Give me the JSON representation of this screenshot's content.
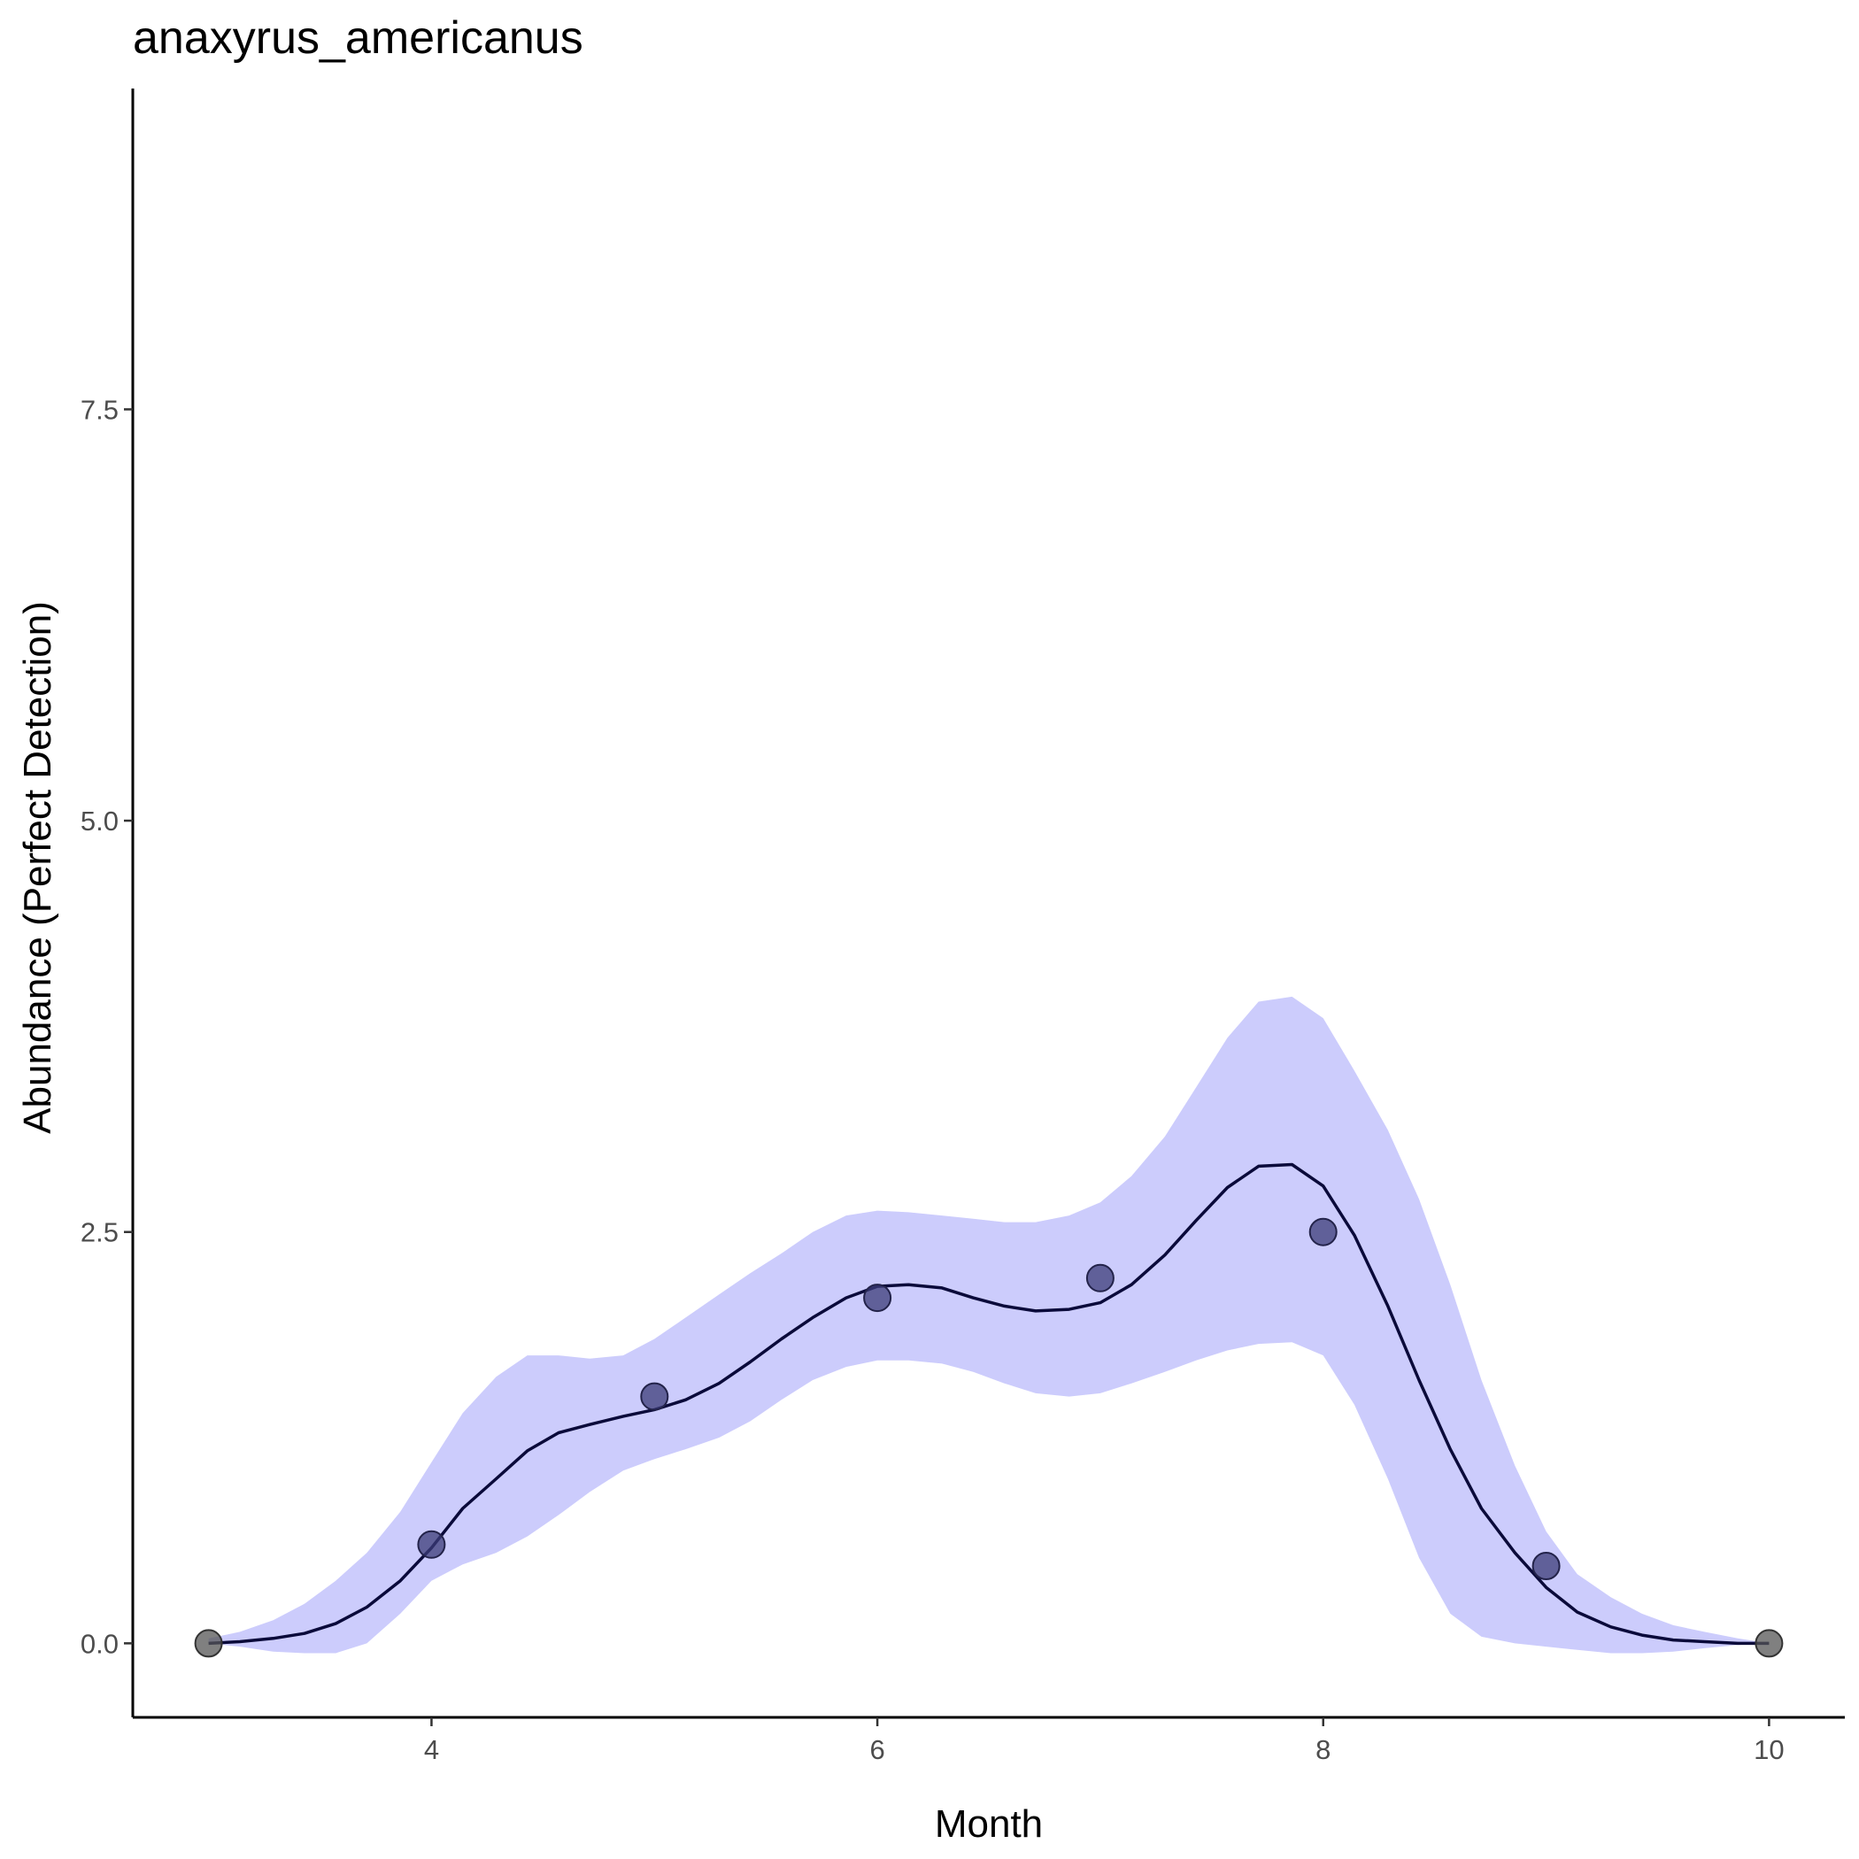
{
  "chart_data": {
    "type": "line",
    "title": "anaxyrus_americanus",
    "xlabel": "Month",
    "ylabel": "Abundance (Perfect Detection)",
    "xlim": [
      2.66,
      10.34
    ],
    "ylim": [
      -0.45,
      9.45
    ],
    "x_ticks": [
      4,
      6,
      8,
      10
    ],
    "y_ticks": [
      0.0,
      2.5,
      5.0,
      7.5
    ],
    "y_tick_labels": [
      "0.0",
      "2.5",
      "5.0",
      "7.5"
    ],
    "grid": false,
    "legend": "none",
    "colors": {
      "ribbon": "#ccccfc",
      "line": "#0a0a3a",
      "point_fill": "#3c3c78",
      "point_fill_zero": "#555555",
      "axis": "#000000"
    },
    "series": [
      {
        "type": "ribbon",
        "x": [
          3.0,
          3.14,
          3.29,
          3.43,
          3.57,
          3.71,
          3.86,
          4.0,
          4.14,
          4.29,
          4.43,
          4.57,
          4.71,
          4.86,
          5.0,
          5.14,
          5.29,
          5.43,
          5.57,
          5.71,
          5.86,
          6.0,
          6.14,
          6.29,
          6.43,
          6.57,
          6.71,
          6.86,
          7.0,
          7.14,
          7.29,
          7.43,
          7.57,
          7.71,
          7.86,
          8.0,
          8.14,
          8.29,
          8.43,
          8.57,
          8.71,
          8.86,
          9.0,
          9.14,
          9.29,
          9.43,
          9.57,
          9.71,
          9.86,
          10.0
        ],
        "lower": [
          0.0,
          -0.02,
          -0.05,
          -0.06,
          -0.06,
          0.0,
          0.18,
          0.38,
          0.48,
          0.55,
          0.65,
          0.78,
          0.92,
          1.05,
          1.12,
          1.18,
          1.25,
          1.35,
          1.48,
          1.6,
          1.68,
          1.72,
          1.72,
          1.7,
          1.65,
          1.58,
          1.52,
          1.5,
          1.52,
          1.58,
          1.65,
          1.72,
          1.78,
          1.82,
          1.83,
          1.75,
          1.45,
          1.0,
          0.52,
          0.18,
          0.04,
          0.0,
          -0.02,
          -0.04,
          -0.06,
          -0.06,
          -0.05,
          -0.03,
          -0.01,
          0.0
        ],
        "upper": [
          0.03,
          0.07,
          0.14,
          0.24,
          0.38,
          0.55,
          0.8,
          1.1,
          1.4,
          1.62,
          1.75,
          1.75,
          1.73,
          1.75,
          1.85,
          1.98,
          2.12,
          2.25,
          2.37,
          2.5,
          2.6,
          2.63,
          2.62,
          2.6,
          2.58,
          2.56,
          2.56,
          2.6,
          2.68,
          2.84,
          3.08,
          3.38,
          3.68,
          3.9,
          3.93,
          3.8,
          3.48,
          3.12,
          2.7,
          2.18,
          1.6,
          1.08,
          0.68,
          0.42,
          0.28,
          0.18,
          0.11,
          0.07,
          0.03,
          0.0
        ]
      },
      {
        "type": "line",
        "x": [
          3.0,
          3.14,
          3.29,
          3.43,
          3.57,
          3.71,
          3.86,
          4.0,
          4.14,
          4.29,
          4.43,
          4.57,
          4.71,
          4.86,
          5.0,
          5.14,
          5.29,
          5.43,
          5.57,
          5.71,
          5.86,
          6.0,
          6.14,
          6.29,
          6.43,
          6.57,
          6.71,
          6.86,
          7.0,
          7.14,
          7.29,
          7.43,
          7.57,
          7.71,
          7.86,
          8.0,
          8.14,
          8.29,
          8.43,
          8.57,
          8.71,
          8.86,
          9.0,
          9.14,
          9.29,
          9.43,
          9.57,
          9.71,
          9.86,
          10.0
        ],
        "y": [
          0.0,
          0.01,
          0.03,
          0.06,
          0.12,
          0.22,
          0.38,
          0.58,
          0.82,
          1.0,
          1.17,
          1.28,
          1.33,
          1.38,
          1.42,
          1.48,
          1.58,
          1.71,
          1.85,
          1.98,
          2.1,
          2.17,
          2.18,
          2.16,
          2.1,
          2.05,
          2.02,
          2.03,
          2.07,
          2.18,
          2.36,
          2.57,
          2.77,
          2.9,
          2.91,
          2.78,
          2.48,
          2.05,
          1.6,
          1.18,
          0.82,
          0.55,
          0.34,
          0.19,
          0.1,
          0.05,
          0.02,
          0.01,
          0.0,
          0.0
        ]
      },
      {
        "type": "scatter",
        "x": [
          3,
          4,
          5,
          6,
          7,
          8,
          9,
          10
        ],
        "y": [
          0.0,
          0.6,
          1.5,
          2.1,
          2.22,
          2.5,
          0.47,
          0.0
        ]
      }
    ]
  }
}
